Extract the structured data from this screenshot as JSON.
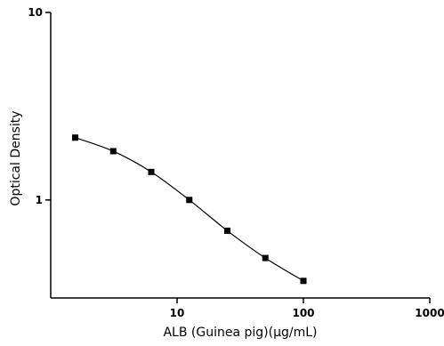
{
  "chart_data": {
    "type": "scatter",
    "title": "",
    "xlabel": "ALB (Guinea pig)(μg/mL)",
    "ylabel": "Optical Density",
    "x_scale": "log",
    "y_scale": "log",
    "xlim": [
      1.0,
      1000
    ],
    "ylim": [
      0.3,
      10
    ],
    "x_ticks": [
      10,
      100,
      1000
    ],
    "x_tick_labels": [
      "10",
      "100",
      "1000"
    ],
    "y_ticks": [
      1,
      10
    ],
    "y_tick_labels": [
      "1",
      "10"
    ],
    "grid": false,
    "legend": "none",
    "fit_curve": true,
    "series": [
      {
        "x": [
          1.5625,
          3.125,
          6.25,
          12.5,
          25,
          50,
          100
        ],
        "y": [
          2.15,
          1.82,
          1.41,
          1.0,
          0.685,
          0.49,
          0.37
        ]
      }
    ],
    "colors": {
      "marker": "#000000",
      "line": "#000000",
      "axis": "#000000"
    }
  }
}
